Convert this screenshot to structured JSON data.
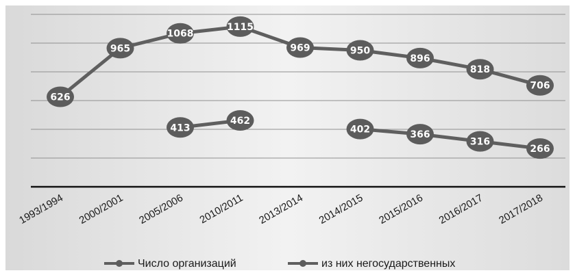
{
  "chart_data": {
    "type": "line",
    "categories": [
      "1993/1994",
      "2000/2001",
      "2005/2006",
      "2010/2011",
      "2013/2014",
      "2014/2015",
      "2015/2016",
      "2016/2017",
      "2017/2018"
    ],
    "series": [
      {
        "name": "Число организаций",
        "values": [
          626,
          965,
          1068,
          1115,
          969,
          950,
          896,
          818,
          706
        ]
      },
      {
        "name": "из них негосударственных",
        "values": [
          null,
          null,
          413,
          462,
          null,
          402,
          366,
          316,
          266
        ]
      }
    ],
    "ylim": [
      0,
      1200
    ],
    "grid": true,
    "legend": "bottom",
    "colors": {
      "background": "#e7e7e7",
      "line": "#5f5f5f",
      "marker": "#5c5c5c",
      "grid": "#8f8f8f",
      "axis": "#111111"
    }
  }
}
